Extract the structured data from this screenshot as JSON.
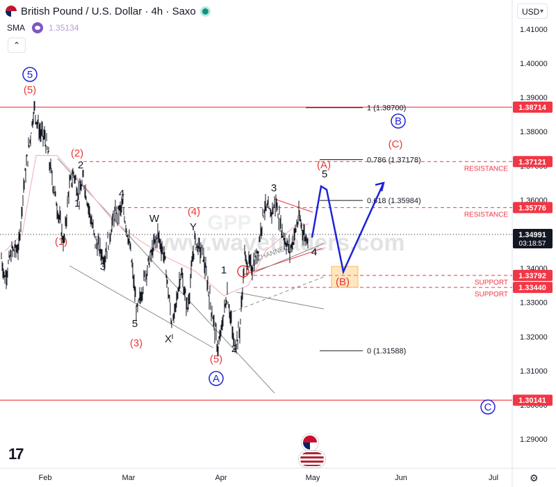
{
  "header": {
    "title": "British Pound / U.S. Dollar · 4h · Saxo",
    "sma_label": "SMA",
    "sma_value": "1.35134",
    "currency": "USD"
  },
  "chart_data": {
    "type": "candlestick",
    "symbol": "British Pound / U.S. Dollar",
    "timeframe": "4h",
    "source": "Saxo",
    "currency": "USD",
    "ylim": [
      1.2815,
      1.4185
    ],
    "y_ticks": [
      "1.41000",
      "1.40000",
      "1.39000",
      "1.38000",
      "1.37000",
      "1.36000",
      "1.35000",
      "1.34000",
      "1.33000",
      "1.32000",
      "1.31000",
      "1.30000",
      "1.29000"
    ],
    "x_ticks": [
      "Feb",
      "Mar",
      "Apr",
      "May",
      "Jun",
      "Jul"
    ],
    "price_path": [
      {
        "t": 0,
        "p": 1.343
      },
      {
        "t": 5,
        "p": 1.337
      },
      {
        "t": 15,
        "p": 1.345
      },
      {
        "t": 25,
        "p": 1.346
      },
      {
        "t": 32,
        "p": 1.364
      },
      {
        "t": 40,
        "p": 1.376
      },
      {
        "t": 47,
        "p": 1.387
      },
      {
        "t": 55,
        "p": 1.38
      },
      {
        "t": 63,
        "p": 1.378
      },
      {
        "t": 75,
        "p": 1.364
      },
      {
        "t": 90,
        "p": 1.347
      },
      {
        "t": 97,
        "p": 1.363
      },
      {
        "t": 104,
        "p": 1.368
      },
      {
        "t": 112,
        "p": 1.361
      },
      {
        "t": 118,
        "p": 1.366
      },
      {
        "t": 135,
        "p": 1.348
      },
      {
        "t": 148,
        "p": 1.343
      },
      {
        "t": 162,
        "p": 1.355
      },
      {
        "t": 175,
        "p": 1.358
      },
      {
        "t": 185,
        "p": 1.346
      },
      {
        "t": 195,
        "p": 1.327
      },
      {
        "t": 208,
        "p": 1.339
      },
      {
        "t": 225,
        "p": 1.35
      },
      {
        "t": 235,
        "p": 1.343
      },
      {
        "t": 246,
        "p": 1.322
      },
      {
        "t": 258,
        "p": 1.339
      },
      {
        "t": 268,
        "p": 1.328
      },
      {
        "t": 278,
        "p": 1.348
      },
      {
        "t": 290,
        "p": 1.344
      },
      {
        "t": 300,
        "p": 1.331
      },
      {
        "t": 312,
        "p": 1.316
      },
      {
        "t": 325,
        "p": 1.333
      },
      {
        "t": 335,
        "p": 1.317
      },
      {
        "t": 343,
        "p": 1.322
      },
      {
        "t": 350,
        "p": 1.343
      },
      {
        "t": 360,
        "p": 1.34
      },
      {
        "t": 368,
        "p": 1.344
      },
      {
        "t": 378,
        "p": 1.358
      },
      {
        "t": 387,
        "p": 1.356
      },
      {
        "t": 395,
        "p": 1.359
      },
      {
        "t": 405,
        "p": 1.35
      },
      {
        "t": 415,
        "p": 1.345
      },
      {
        "t": 422,
        "p": 1.35
      },
      {
        "t": 428,
        "p": 1.355
      },
      {
        "t": 437,
        "p": 1.349
      },
      {
        "t": 442,
        "p": 1.3499
      }
    ],
    "sma_path": [
      {
        "t": 5,
        "p": 1.345
      },
      {
        "t": 30,
        "p": 1.35
      },
      {
        "t": 50,
        "p": 1.373
      },
      {
        "t": 80,
        "p": 1.373
      },
      {
        "t": 120,
        "p": 1.364
      },
      {
        "t": 160,
        "p": 1.354
      },
      {
        "t": 200,
        "p": 1.348
      },
      {
        "t": 240,
        "p": 1.343
      },
      {
        "t": 280,
        "p": 1.339
      },
      {
        "t": 320,
        "p": 1.332
      },
      {
        "t": 355,
        "p": 1.335
      },
      {
        "t": 380,
        "p": 1.345
      },
      {
        "t": 420,
        "p": 1.352
      },
      {
        "t": 442,
        "p": 1.353
      }
    ],
    "projection_path": [
      {
        "t": 447,
        "p": 1.349
      },
      {
        "t": 460,
        "p": 1.364
      },
      {
        "t": 468,
        "p": 1.363
      },
      {
        "t": 492,
        "p": 1.339
      },
      {
        "t": 550,
        "p": 1.365
      }
    ],
    "fib_levels": [
      {
        "label": "1 (1.38700)",
        "price": 1.387
      },
      {
        "label": "0.786 (1.37178)",
        "price": 1.37178
      },
      {
        "label": "0.618 (1.35984)",
        "price": 1.35984
      },
      {
        "label": "0 (1.31588)",
        "price": 1.31588
      }
    ],
    "horizontal_lines": [
      {
        "price": 1.38714,
        "style": "solid"
      },
      {
        "price": 1.37121,
        "style": "dashed",
        "label": "RESISTANCE"
      },
      {
        "price": 1.35776,
        "style": "dashed",
        "label": "RESISTANCE"
      },
      {
        "price": 1.33792,
        "style": "dashed",
        "label": "SUPPORT"
      },
      {
        "price": 1.3344,
        "style": "dashed",
        "label": "SUPPORT"
      },
      {
        "price": 1.30141,
        "style": "solid"
      }
    ],
    "price_tags": [
      {
        "text": "1.38714",
        "price": 1.38714,
        "color": "#f23645"
      },
      {
        "text": "1.37121",
        "price": 1.37121,
        "color": "#f23645"
      },
      {
        "text": "1.35776",
        "price": 1.35776,
        "color": "#f23645"
      },
      {
        "text": "1.34991",
        "price": 1.34991,
        "color": "#131722",
        "sub": "03:18:57"
      },
      {
        "text": "1.33792",
        "price": 1.33792,
        "color": "#f23645"
      },
      {
        "text": "1.33440",
        "price": 1.3344,
        "color": "#f23645"
      },
      {
        "text": "1.30141",
        "price": 1.30141,
        "color": "#f23645"
      }
    ],
    "wave_labels": [
      {
        "text": "5",
        "color": "blue",
        "circled": true
      },
      {
        "text": "(5)",
        "color": "red"
      },
      {
        "text": "(2)",
        "color": "red"
      },
      {
        "text": "2",
        "color": "black"
      },
      {
        "text": "1",
        "color": "black"
      },
      {
        "text": "4",
        "color": "black"
      },
      {
        "text": "(1)",
        "color": "red"
      },
      {
        "text": "(4)",
        "color": "red"
      },
      {
        "text": "3",
        "color": "black"
      },
      {
        "text": "W",
        "color": "black"
      },
      {
        "text": "Y",
        "color": "black"
      },
      {
        "text": "4",
        "color": "black"
      },
      {
        "text": "5",
        "color": "black"
      },
      {
        "text": "(3)",
        "color": "red"
      },
      {
        "text": "X",
        "color": "black"
      },
      {
        "text": "1",
        "color": "black"
      },
      {
        "text": "(5)",
        "color": "red"
      },
      {
        "text": "A",
        "color": "blue",
        "circled": true
      },
      {
        "text": "2",
        "color": "black"
      },
      {
        "text": "3",
        "color": "black"
      },
      {
        "text": "(A)",
        "color": "red"
      },
      {
        "text": "5",
        "color": "black"
      },
      {
        "text": "4",
        "color": "black"
      },
      {
        "text": "B",
        "color": "blue",
        "circled": true
      },
      {
        "text": "(C)",
        "color": "red"
      },
      {
        "text": "(B)",
        "color": "red"
      },
      {
        "text": "C",
        "color": "blue",
        "circled": true
      }
    ],
    "annotations": [
      "CHANNEL"
    ],
    "watermark": "www.wavetraders.com",
    "legend": "none",
    "grid": false
  }
}
